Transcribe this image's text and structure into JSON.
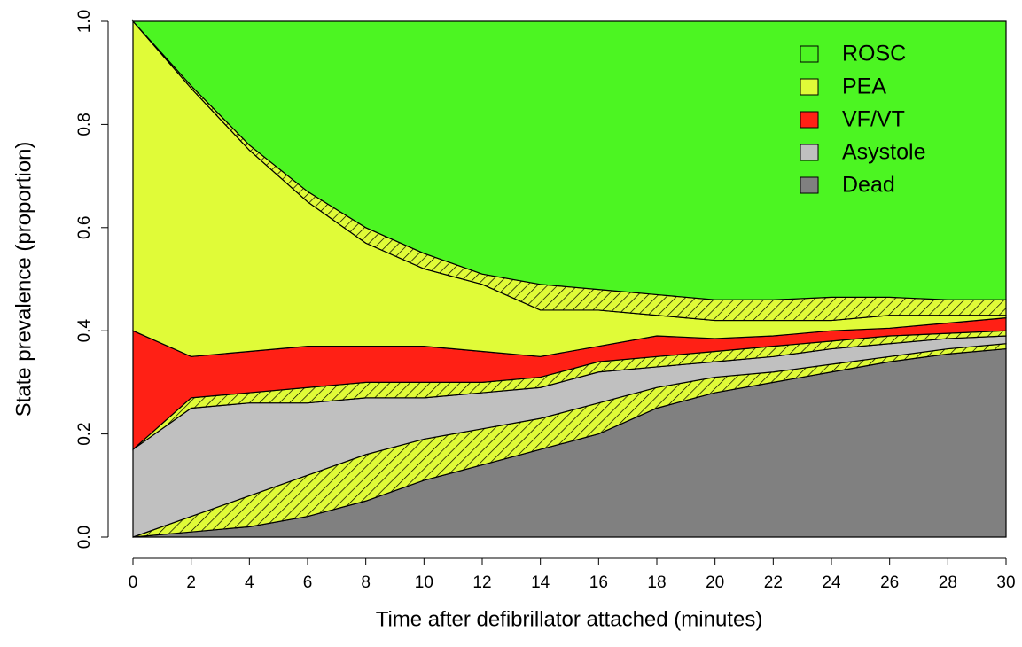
{
  "chart_data": {
    "type": "stacked_area",
    "x_label": "Time after defibrillator attached (minutes)",
    "y_label": "State prevalence (proportion)",
    "x": [
      0,
      2,
      4,
      6,
      8,
      10,
      12,
      14,
      16,
      18,
      20,
      22,
      24,
      26,
      28,
      30
    ],
    "xlim": [
      0,
      30
    ],
    "xticks": [
      0,
      2,
      4,
      6,
      8,
      10,
      12,
      14,
      16,
      18,
      20,
      22,
      24,
      26,
      28,
      30
    ],
    "ylim": [
      0,
      1
    ],
    "yticks": [
      {
        "value": 0,
        "label": "0.0"
      },
      {
        "value": 0.2,
        "label": "0.2"
      },
      {
        "value": 0.4,
        "label": "0.4"
      },
      {
        "value": 0.6,
        "label": "0.6"
      },
      {
        "value": 0.8,
        "label": "0.8"
      },
      {
        "value": 1,
        "label": "1.0"
      }
    ],
    "legend_position": "top-right",
    "series": [
      {
        "name": "Dead",
        "color": "#808080",
        "values": [
          0,
          0.01,
          0.02,
          0.04,
          0.07,
          0.11,
          0.14,
          0.17,
          0.2,
          0.25,
          0.28,
          0.3,
          0.32,
          0.34,
          0.355,
          0.365
        ]
      },
      {
        "name": "PEA",
        "color": "#e0fb38",
        "hatched": true,
        "values": [
          0,
          0.03,
          0.06,
          0.08,
          0.09,
          0.08,
          0.07,
          0.06,
          0.06,
          0.04,
          0.03,
          0.02,
          0.015,
          0.01,
          0.01,
          0.01
        ]
      },
      {
        "name": "Asystole",
        "color": "#c0c0c0",
        "values": [
          0.17,
          0.21,
          0.18,
          0.14,
          0.11,
          0.08,
          0.07,
          0.06,
          0.06,
          0.04,
          0.03,
          0.03,
          0.03,
          0.025,
          0.02,
          0.015
        ]
      },
      {
        "name": "PEA",
        "color": "#e0fb38",
        "hatched": true,
        "values": [
          0,
          0.02,
          0.02,
          0.03,
          0.03,
          0.03,
          0.02,
          0.02,
          0.02,
          0.02,
          0.02,
          0.02,
          0.015,
          0.015,
          0.01,
          0.01
        ]
      },
      {
        "name": "VF/VT",
        "color": "#ff2015",
        "values": [
          0.23,
          0.08,
          0.08,
          0.08,
          0.07,
          0.07,
          0.06,
          0.04,
          0.03,
          0.04,
          0.025,
          0.02,
          0.02,
          0.015,
          0.02,
          0.025
        ]
      },
      {
        "name": "PEA",
        "color": "#e0fb38",
        "values": [
          0.6,
          0.52,
          0.39,
          0.28,
          0.2,
          0.15,
          0.13,
          0.09,
          0.07,
          0.04,
          0.035,
          0.03,
          0.02,
          0.025,
          0.015,
          0.005
        ]
      },
      {
        "name": "PEA",
        "color": "#e0fb38",
        "hatched": true,
        "values": [
          0,
          0.005,
          0.01,
          0.02,
          0.03,
          0.03,
          0.02,
          0.05,
          0.04,
          0.04,
          0.04,
          0.04,
          0.045,
          0.035,
          0.03,
          0.03
        ]
      },
      {
        "name": "ROSC",
        "color": "#4cf522",
        "values": [
          0,
          0.125,
          0.24,
          0.33,
          0.4,
          0.45,
          0.49,
          0.51,
          0.52,
          0.53,
          0.54,
          0.54,
          0.535,
          0.535,
          0.54,
          0.54
        ]
      }
    ]
  }
}
